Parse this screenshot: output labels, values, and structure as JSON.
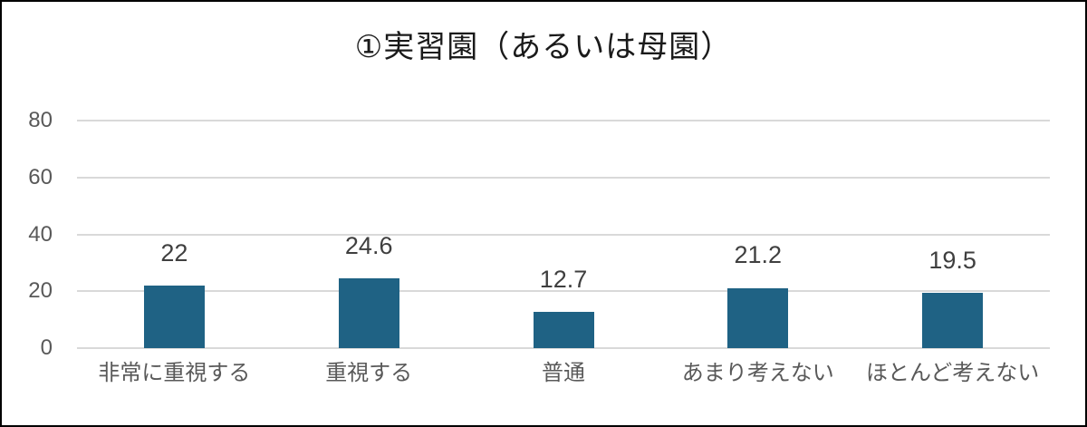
{
  "chart_data": {
    "type": "bar",
    "title": "①実習園（あるいは母園）",
    "categories": [
      "非常に重視する",
      "重視する",
      "普通",
      "あまり考えない",
      "ほとんど考えない"
    ],
    "values": [
      22,
      24.6,
      12.7,
      21.2,
      19.5
    ],
    "xlabel": "",
    "ylabel": "",
    "ylim": [
      0,
      80
    ],
    "yticks": [
      0,
      20,
      40,
      60,
      80
    ],
    "grid": true,
    "legend": "none",
    "bar_color": "#1F6284",
    "gridline_color": "#D9D9D9",
    "axis_text_color": "#595959",
    "value_label_color": "#3F3F3F",
    "title_color": "#1A1A1A",
    "frame_border_color": "#000000"
  }
}
